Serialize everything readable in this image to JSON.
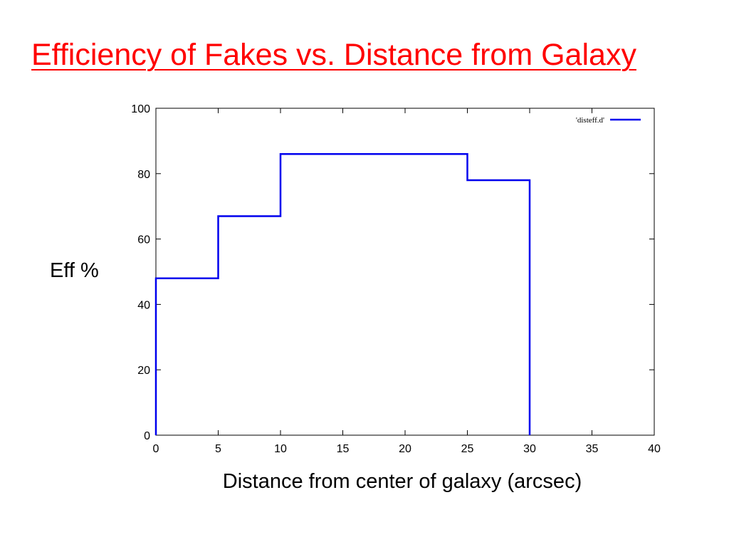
{
  "slide": {
    "title": "Efficiency of Fakes vs. Distance from Galaxy"
  },
  "chart_data": {
    "type": "line",
    "step": true,
    "xlabel": "Distance from center of galaxy (arcsec)",
    "ylabel": "Eff %",
    "xlim": [
      0,
      40
    ],
    "ylim": [
      0,
      100
    ],
    "xticks": [
      0,
      5,
      10,
      15,
      20,
      25,
      30,
      35,
      40
    ],
    "yticks": [
      0,
      20,
      40,
      60,
      80,
      100
    ],
    "grid": false,
    "legend_position": "top-right",
    "colors": {
      "series": "#0000ee",
      "axes": "#000000",
      "title": "#ff0000"
    },
    "series": [
      {
        "name": "'disteff.d'",
        "x": [
          0,
          0,
          5,
          5,
          10,
          10,
          25,
          25,
          30,
          30
        ],
        "y": [
          0,
          48,
          48,
          67,
          67,
          86,
          86,
          78,
          78,
          0
        ]
      }
    ]
  }
}
